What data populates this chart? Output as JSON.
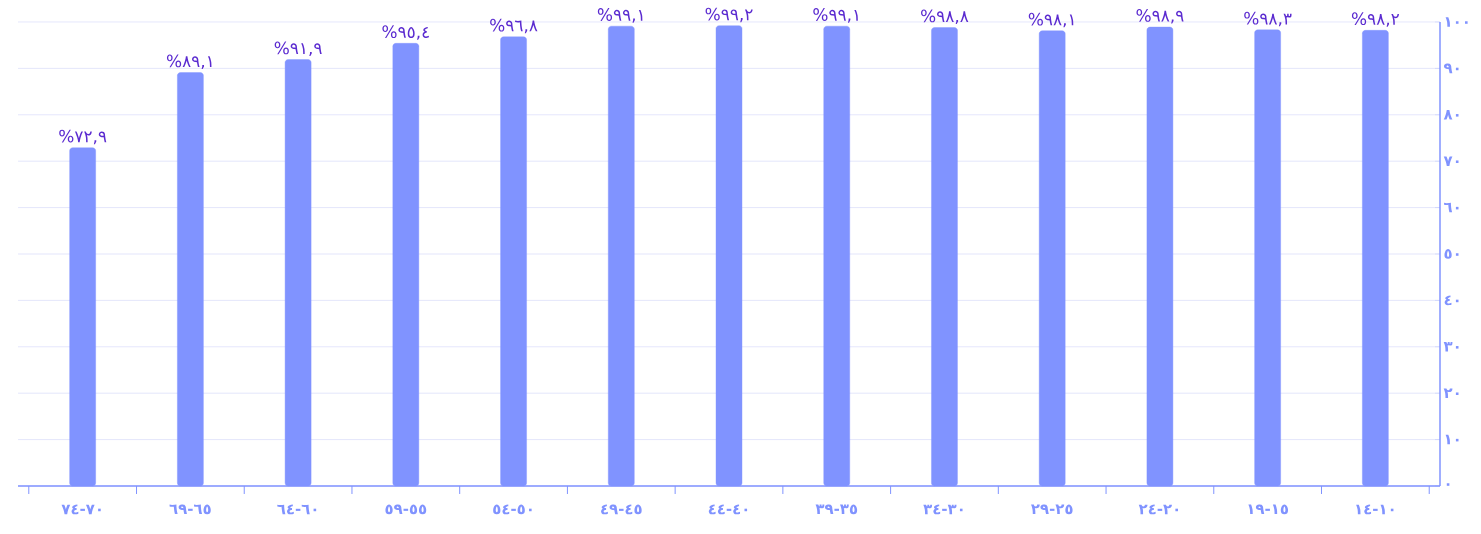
{
  "chart_data": {
    "type": "bar",
    "categories": [
      "٧٤-٧٠",
      "٦٩-٦٥",
      "٦٤-٦٠",
      "٥٩-٥٥",
      "٥٤-٥٠",
      "٤٩-٤٥",
      "٤٤-٤٠",
      "٣٩-٣٥",
      "٣٤-٣٠",
      "٢٩-٢٥",
      "٢٤-٢٠",
      "١٩-١٥",
      "١٤-١٠"
    ],
    "values": [
      72.9,
      89.1,
      91.9,
      95.4,
      96.8,
      99.1,
      99.2,
      99.1,
      98.8,
      98.1,
      98.9,
      98.3,
      98.2
    ],
    "value_labels": [
      "%٧٢,٩",
      "%٨٩,١",
      "%٩١,٩",
      "%٩٥,٤",
      "%٩٦,٨",
      "%٩٩,١",
      "%٩٩,٢",
      "%٩٩,١",
      "%٩٨,٨",
      "%٩٨,١",
      "%٩٨,٩",
      "%٩٨,٣",
      "%٩٨,٢"
    ],
    "color": "#8093ff",
    "ylim": [
      0,
      100
    ],
    "yticks": [
      {
        "value": 0,
        "label": "٠"
      },
      {
        "value": 10,
        "label": "١٠"
      },
      {
        "value": 20,
        "label": "٢٠"
      },
      {
        "value": 30,
        "label": "٣٠"
      },
      {
        "value": 40,
        "label": "٤٠"
      },
      {
        "value": 50,
        "label": "٥٠"
      },
      {
        "value": 60,
        "label": "٦٠"
      },
      {
        "value": 70,
        "label": "٧٠"
      },
      {
        "value": 80,
        "label": "٨٠"
      },
      {
        "value": 90,
        "label": "٩٠"
      },
      {
        "value": 100,
        "label": "١٠٠"
      }
    ],
    "grid": "y"
  }
}
